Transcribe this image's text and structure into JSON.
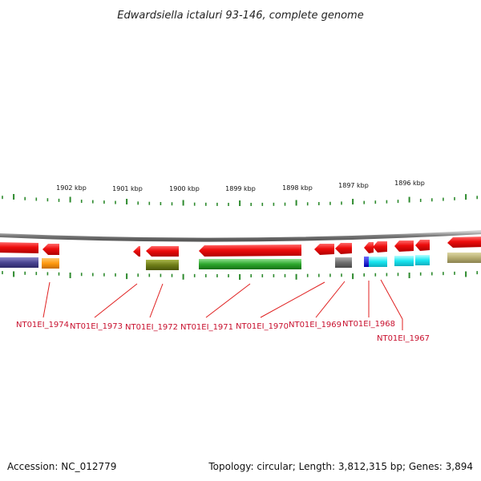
{
  "title": "Edwardsiella ictaluri 93-146, complete genome",
  "footer": {
    "accession": "Accession: NC_012779",
    "summary": "Topology: circular; Length: 3,812,315 bp; Genes: 3,894"
  },
  "kbp_labels": [
    "1902 kbp",
    "1901 kbp",
    "1900 kbp",
    "1899 kbp",
    "1898 kbp",
    "1897 kbp",
    "1896 kbp"
  ],
  "gene_labels": [
    "NT01EI_1974",
    "NT01EI_1973",
    "NT01EI_1972",
    "NT01EI_1971",
    "NT01EI_1970",
    "NT01EI_1969",
    "NT01EI_1968",
    "NT01EI_1967"
  ],
  "colors": {
    "backbone": "#8a8a8a",
    "gene_arrow": "#ee1111",
    "tick": "#2d8a2d",
    "label": "#c8102e"
  }
}
